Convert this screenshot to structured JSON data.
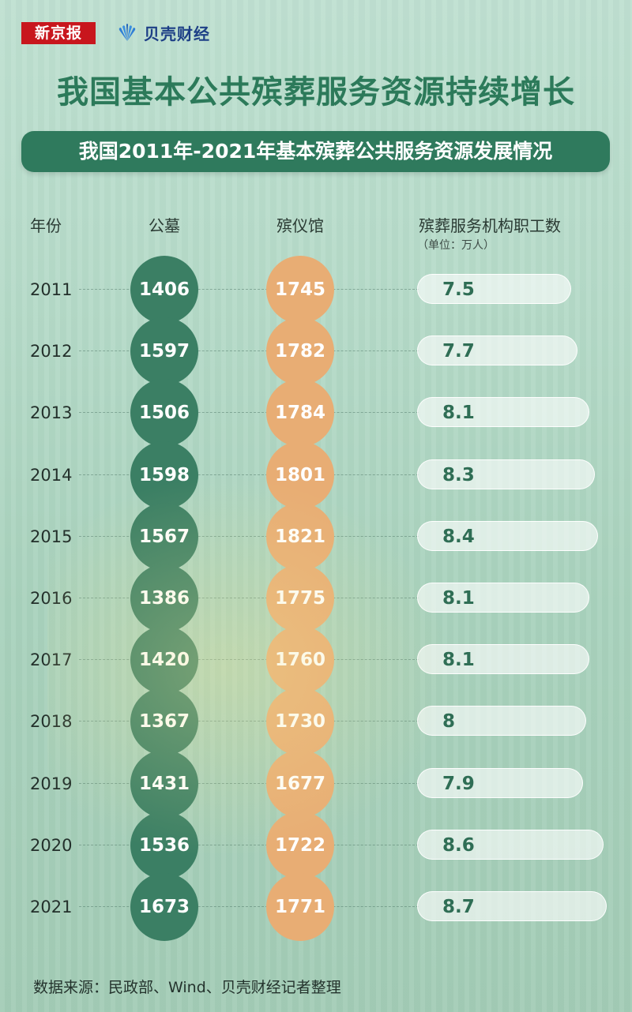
{
  "logos": {
    "xinjingbao": "新京报",
    "beike": "贝壳财经"
  },
  "title": "我国基本公共殡葬服务资源持续增长",
  "subtitle": "我国2011年-2021年基本殡葬公共服务资源发展情况",
  "headers": {
    "year": "年份",
    "cemetery": "公墓",
    "funeral_home": "殡仪馆",
    "staff": "殡葬服务机构职工数",
    "staff_unit": "（单位：万人）"
  },
  "colors": {
    "cemetery": "#3b7f64",
    "funeral_home": "#e8ad74",
    "title": "#2c7a5a"
  },
  "chart_data": {
    "type": "table",
    "columns": [
      "年份",
      "公墓",
      "殡仪馆",
      "殡葬服务机构职工数"
    ],
    "rows": [
      {
        "year": "2011",
        "cemetery": "1406",
        "funeral_home": "1745",
        "staff": "7.5"
      },
      {
        "year": "2012",
        "cemetery": "1597",
        "funeral_home": "1782",
        "staff": "7.7"
      },
      {
        "year": "2013",
        "cemetery": "1506",
        "funeral_home": "1784",
        "staff": "8.1"
      },
      {
        "year": "2014",
        "cemetery": "1598",
        "funeral_home": "1801",
        "staff": "8.3"
      },
      {
        "year": "2015",
        "cemetery": "1567",
        "funeral_home": "1821",
        "staff": "8.4"
      },
      {
        "year": "2016",
        "cemetery": "1386",
        "funeral_home": "1775",
        "staff": "8.1"
      },
      {
        "year": "2017",
        "cemetery": "1420",
        "funeral_home": "1760",
        "staff": "8.1"
      },
      {
        "year": "2018",
        "cemetery": "1367",
        "funeral_home": "1730",
        "staff": "8"
      },
      {
        "year": "2019",
        "cemetery": "1431",
        "funeral_home": "1677",
        "staff": "7.9"
      },
      {
        "year": "2020",
        "cemetery": "1536",
        "funeral_home": "1722",
        "staff": "8.6"
      },
      {
        "year": "2021",
        "cemetery": "1673",
        "funeral_home": "1771",
        "staff": "8.7"
      }
    ]
  },
  "source": "数据来源：民政部、Wind、贝壳财经记者整理"
}
